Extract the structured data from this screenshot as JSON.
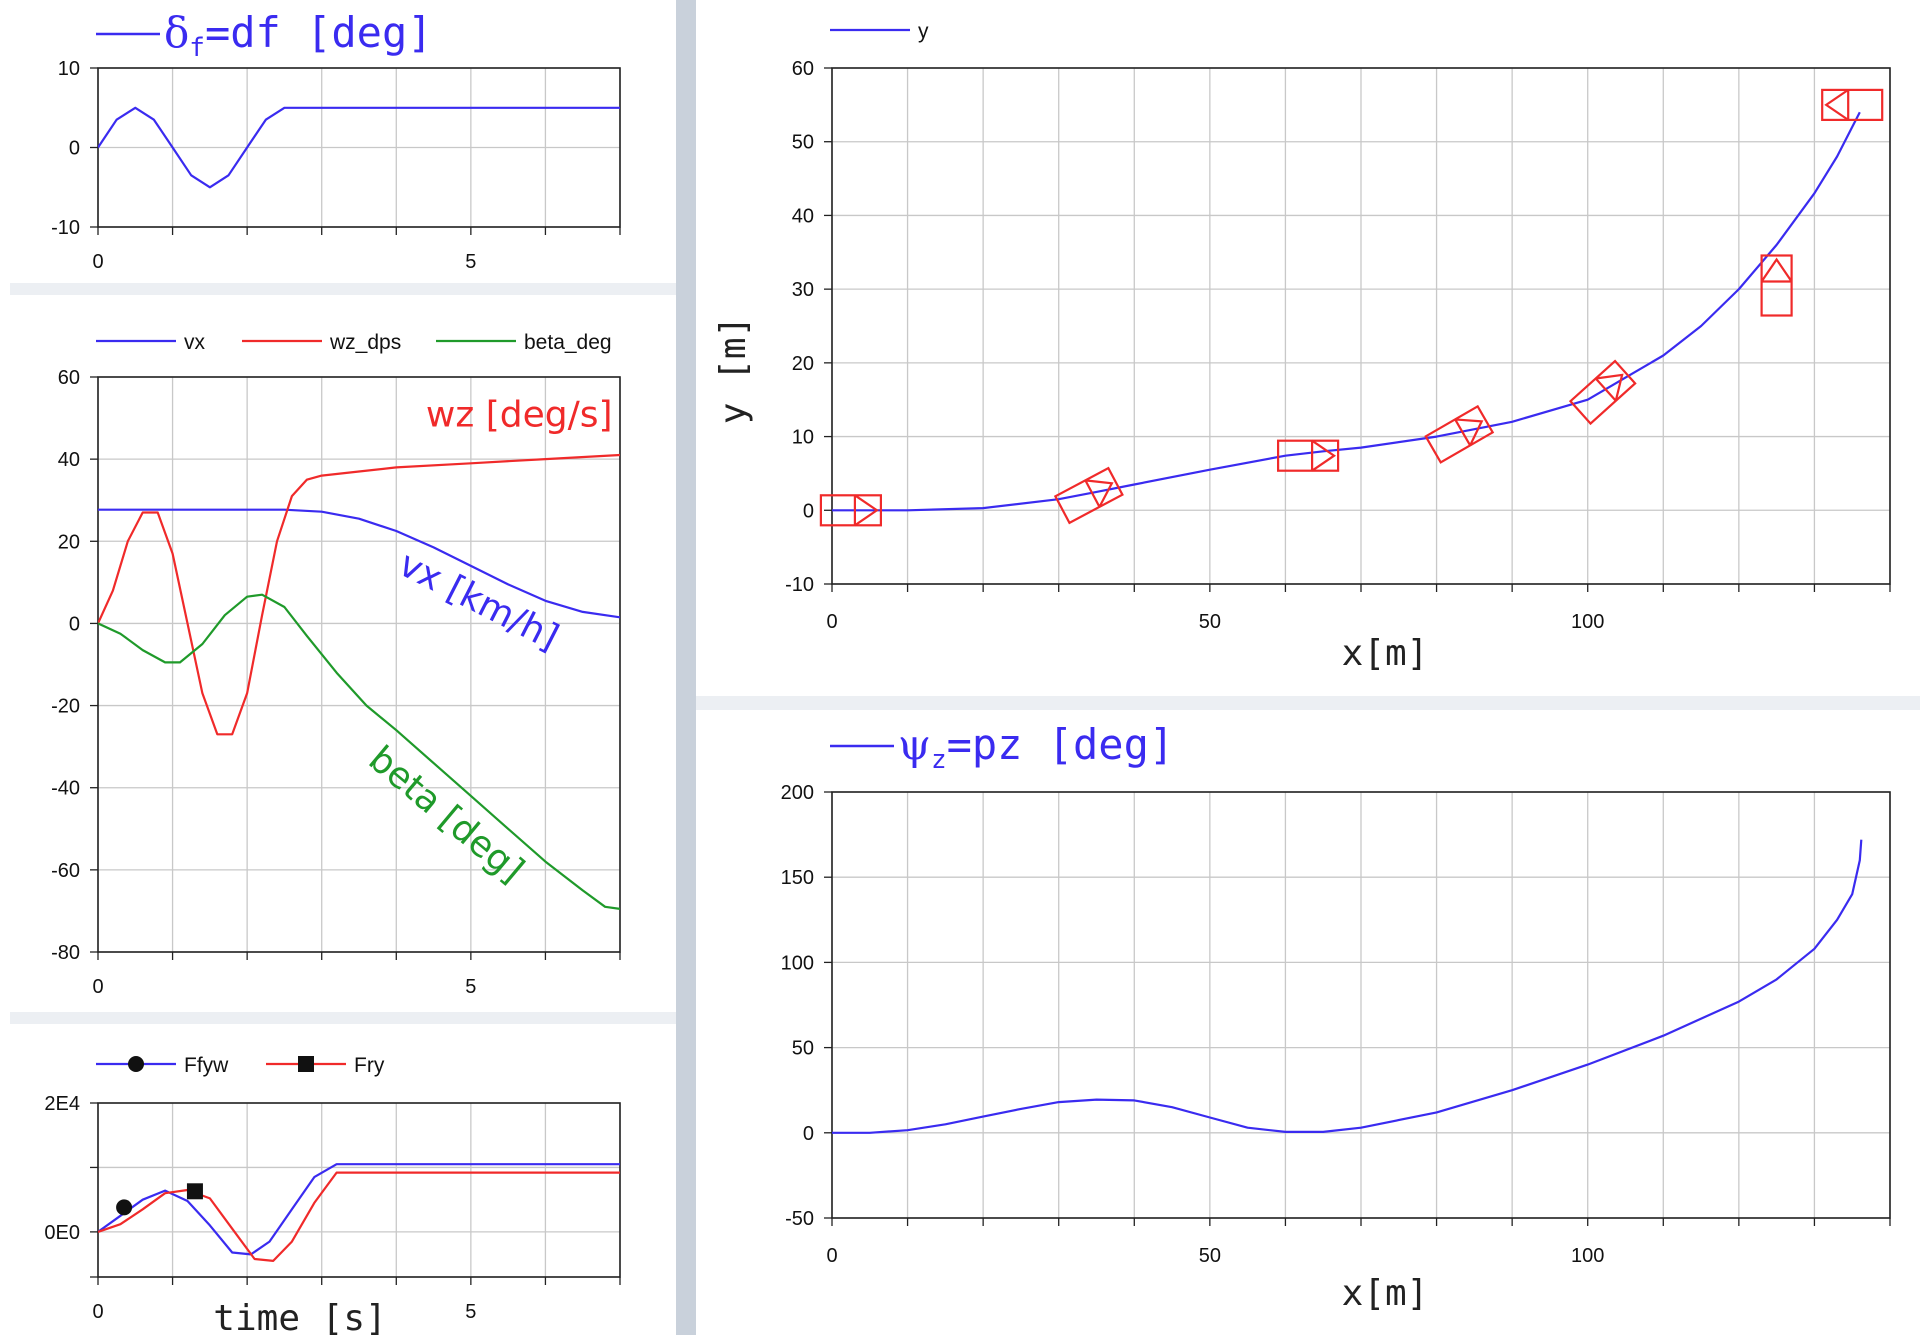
{
  "colors": {
    "blue": "#3a2bf0",
    "red": "#f02a2a",
    "green": "#1f9a2a",
    "divider": "#c9d1db",
    "panel_bg": "#eceff3"
  },
  "chart_data": [
    {
      "id": "df",
      "type": "line",
      "legend": [
        {
          "label_main": "δ",
          "label_sub": "f",
          "label_rest": "=df  [deg]",
          "color": "blue",
          "style": "large"
        }
      ],
      "xlim": [
        0,
        7
      ],
      "ylim": [
        -10,
        10
      ],
      "xticks": [
        {
          "v": 0,
          "label": "0"
        },
        {
          "v": 5,
          "label": "5"
        }
      ],
      "yticks": [
        {
          "v": 10,
          "label": "10"
        },
        {
          "v": 0,
          "label": "0"
        },
        {
          "v": -10,
          "label": "-10"
        }
      ],
      "series": [
        {
          "name": "δf=df",
          "color": "blue",
          "x": [
            0,
            0.25,
            0.5,
            0.75,
            1.0,
            1.25,
            1.5,
            1.75,
            2.0,
            2.25,
            2.5,
            3,
            4,
            5,
            6,
            7
          ],
          "y": [
            0,
            3.5,
            5,
            3.5,
            0,
            -3.5,
            -5,
            -3.5,
            0,
            3.5,
            5,
            5,
            5,
            5,
            5,
            5
          ]
        }
      ]
    },
    {
      "id": "vx_wz_beta",
      "type": "line",
      "legend": [
        {
          "label": "vx",
          "color": "blue"
        },
        {
          "label": "wz_dps",
          "color": "red"
        },
        {
          "label": "beta_deg",
          "color": "green"
        }
      ],
      "xlim": [
        0,
        7
      ],
      "ylim": [
        -80,
        60
      ],
      "xticks": [
        {
          "v": 0,
          "label": "0"
        },
        {
          "v": 5,
          "label": "5"
        }
      ],
      "yticks": [
        {
          "v": 60,
          "label": "60"
        },
        {
          "v": 40,
          "label": "40"
        },
        {
          "v": 20,
          "label": "20"
        },
        {
          "v": 0,
          "label": "0"
        },
        {
          "v": -20,
          "label": "-20"
        },
        {
          "v": -40,
          "label": "-40"
        },
        {
          "v": -60,
          "label": "-60"
        },
        {
          "v": -80,
          "label": "-80"
        }
      ],
      "series": [
        {
          "name": "vx",
          "color": "blue",
          "x": [
            0,
            1,
            2,
            2.5,
            3,
            3.5,
            4,
            4.5,
            5,
            5.5,
            6,
            6.5,
            7
          ],
          "y": [
            27.7,
            27.7,
            27.7,
            27.7,
            27.2,
            25.5,
            22.5,
            18.5,
            14,
            9.5,
            5.5,
            2.8,
            1.5
          ]
        },
        {
          "name": "wz_dps",
          "color": "red",
          "x": [
            0,
            0.2,
            0.4,
            0.6,
            0.8,
            1.0,
            1.2,
            1.4,
            1.6,
            1.8,
            2.0,
            2.2,
            2.4,
            2.6,
            2.8,
            3.0,
            3.5,
            4,
            5,
            6,
            7
          ],
          "y": [
            0,
            8,
            20,
            27,
            27,
            17,
            0,
            -17,
            -27,
            -27,
            -17,
            2,
            20,
            31,
            35,
            36,
            37,
            38,
            39,
            40,
            41
          ]
        },
        {
          "name": "beta_deg",
          "color": "green",
          "x": [
            0,
            0.3,
            0.6,
            0.9,
            1.1,
            1.4,
            1.7,
            2.0,
            2.2,
            2.5,
            2.8,
            3.2,
            3.6,
            4,
            4.5,
            5,
            5.5,
            6,
            6.5,
            6.8,
            7
          ],
          "y": [
            0,
            -2.5,
            -6.5,
            -9.5,
            -9.5,
            -5,
            2,
            6.5,
            7,
            4,
            -3,
            -12,
            -20,
            -26,
            -34,
            -42,
            -50,
            -58,
            -65,
            -69,
            -69.5
          ]
        }
      ],
      "annotations": [
        {
          "text": "wz [deg/s]",
          "color": "red",
          "x": 6.9,
          "y": 48,
          "rotate": 0,
          "anchor": "end"
        },
        {
          "text": "vx [km/h]",
          "color": "blue",
          "x": 4.0,
          "y": 12.5,
          "rotate": 27,
          "anchor": "start"
        },
        {
          "text": "beta [deg]",
          "color": "green",
          "x": 3.6,
          "y": -34,
          "rotate": 40,
          "anchor": "start"
        }
      ]
    },
    {
      "id": "forces",
      "type": "line",
      "legend": [
        {
          "label": "Ffyw",
          "color": "blue",
          "marker": "circle"
        },
        {
          "label": "Fry",
          "color": "red",
          "marker": "square"
        }
      ],
      "xlim": [
        0,
        7
      ],
      "ylim": [
        -7000,
        20000
      ],
      "xticks": [
        {
          "v": 0,
          "label": "0"
        },
        {
          "v": 5,
          "label": "5"
        }
      ],
      "yticks": [
        {
          "v": 20000,
          "label": "2E4"
        },
        {
          "v": 0,
          "label": "0E0"
        }
      ],
      "ygrid": [
        20000,
        10000,
        0,
        -7000
      ],
      "xlabel": "time [s]",
      "series": [
        {
          "name": "Ffyw",
          "color": "blue",
          "marker": "circle",
          "marker_at": [
            0.35,
            3800
          ],
          "x": [
            0,
            0.3,
            0.6,
            0.9,
            1.2,
            1.5,
            1.8,
            2.05,
            2.3,
            2.6,
            2.9,
            3.2,
            4,
            5,
            6,
            7
          ],
          "y": [
            0,
            2500,
            5000,
            6400,
            4800,
            1000,
            -3200,
            -3500,
            -1500,
            3500,
            8500,
            10500,
            10500,
            10500,
            10500,
            10500
          ]
        },
        {
          "name": "Fry",
          "color": "red",
          "marker": "square",
          "marker_at": [
            1.3,
            6300
          ],
          "x": [
            0,
            0.3,
            0.6,
            0.9,
            1.2,
            1.5,
            1.8,
            2.1,
            2.35,
            2.6,
            2.9,
            3.2,
            4,
            5,
            6,
            7
          ],
          "y": [
            0,
            1200,
            3500,
            6000,
            6500,
            5200,
            500,
            -4200,
            -4500,
            -1500,
            4500,
            9200,
            9200,
            9200,
            9200,
            9200
          ]
        }
      ]
    },
    {
      "id": "trajectory",
      "type": "line",
      "legend": [
        {
          "label": "y",
          "color": "blue"
        }
      ],
      "xlim": [
        0,
        140
      ],
      "ylim": [
        -10,
        60
      ],
      "xticks": [
        {
          "v": 0,
          "label": "0"
        },
        {
          "v": 50,
          "label": "50"
        },
        {
          "v": 100,
          "label": "100"
        }
      ],
      "yticks": [
        {
          "v": 60,
          "label": "60"
        },
        {
          "v": 50,
          "label": "50"
        },
        {
          "v": 40,
          "label": "40"
        },
        {
          "v": 30,
          "label": "30"
        },
        {
          "v": 20,
          "label": "20"
        },
        {
          "v": 10,
          "label": "10"
        },
        {
          "v": 0,
          "label": "0"
        },
        {
          "v": -10,
          "label": "-10"
        }
      ],
      "xgrid_step": 10,
      "xlabel": "x[m]",
      "ylabel": "y [m]",
      "series": [
        {
          "name": "y",
          "color": "blue",
          "x": [
            0,
            10,
            20,
            30,
            35,
            40,
            50,
            60,
            65,
            70,
            80,
            85,
            90,
            100,
            105,
            110,
            115,
            120,
            125,
            130,
            133,
            135,
            136
          ],
          "y": [
            0,
            0,
            0.3,
            1.5,
            2.5,
            3.5,
            5.5,
            7.4,
            8,
            8.5,
            10,
            11,
            12,
            15,
            18,
            21,
            25,
            30,
            36,
            43,
            48,
            52,
            54
          ]
        }
      ],
      "vehicles": [
        {
          "x": 2.5,
          "y": 0,
          "heading": 0
        },
        {
          "x": 34,
          "y": 2,
          "heading": 28
        },
        {
          "x": 63,
          "y": 7.4,
          "heading": 0
        },
        {
          "x": 83,
          "y": 10.3,
          "heading": 30
        },
        {
          "x": 102,
          "y": 16,
          "heading": 42
        },
        {
          "x": 125,
          "y": 30.5,
          "heading": 90
        },
        {
          "x": 135,
          "y": 55,
          "heading": 180
        }
      ]
    },
    {
      "id": "yaw",
      "type": "line",
      "legend": [
        {
          "label_main": "ψ",
          "label_sub": "z",
          "label_rest": "=pz  [deg]",
          "color": "blue",
          "style": "large"
        }
      ],
      "xlim": [
        0,
        140
      ],
      "ylim": [
        -50,
        200
      ],
      "xticks": [
        {
          "v": 0,
          "label": "0"
        },
        {
          "v": 50,
          "label": "50"
        },
        {
          "v": 100,
          "label": "100"
        }
      ],
      "yticks": [
        {
          "v": 200,
          "label": "200"
        },
        {
          "v": 150,
          "label": "150"
        },
        {
          "v": 100,
          "label": "100"
        },
        {
          "v": 50,
          "label": "50"
        },
        {
          "v": 0,
          "label": "0"
        },
        {
          "v": -50,
          "label": "-50"
        }
      ],
      "xgrid_step": 10,
      "xlabel": "x[m]",
      "series": [
        {
          "name": "ψz=pz",
          "color": "blue",
          "x": [
            0,
            5,
            10,
            15,
            20,
            25,
            30,
            35,
            40,
            45,
            50,
            55,
            60,
            65,
            70,
            80,
            90,
            100,
            110,
            120,
            125,
            130,
            133,
            135,
            136,
            136.2
          ],
          "y": [
            0,
            0,
            1.5,
            5,
            9.5,
            14,
            18,
            19.5,
            19,
            15,
            9,
            3,
            0.5,
            0.5,
            3,
            12,
            25,
            40,
            57,
            77,
            90,
            108,
            125,
            140,
            160,
            172
          ]
        }
      ]
    }
  ]
}
